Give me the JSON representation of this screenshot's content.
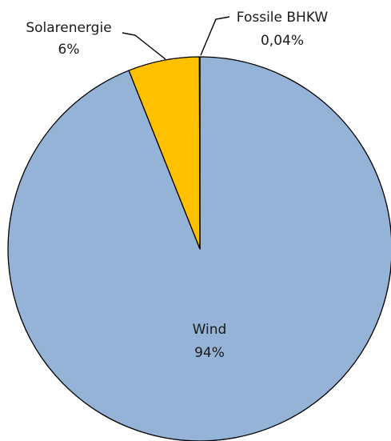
{
  "chart_data": {
    "type": "pie",
    "title": "",
    "slices": [
      {
        "name": "Wind",
        "value": 94,
        "label_value": "94%",
        "color": "#95b3d7"
      },
      {
        "name": "Solarenergie",
        "value": 6,
        "label_value": "6%",
        "color": "#ffc000"
      },
      {
        "name": "Fossile BHKW",
        "value": 0.04,
        "label_value": "0,04%",
        "color": "#ffc000"
      }
    ],
    "slice_border_color": "#000000",
    "legend": "none",
    "labels": "data-labels-with-leader-lines"
  }
}
